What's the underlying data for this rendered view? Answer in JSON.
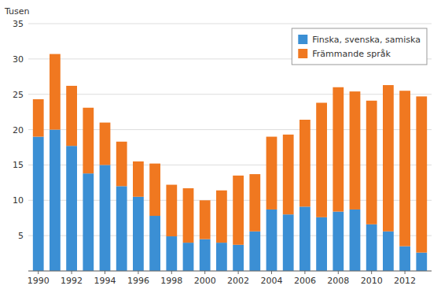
{
  "chart_data": {
    "type": "bar",
    "stacked": true,
    "y_label": "Tusen",
    "x": [
      1990,
      1991,
      1992,
      1993,
      1994,
      1995,
      1996,
      1997,
      1998,
      1999,
      2000,
      2001,
      2002,
      2003,
      2004,
      2005,
      2006,
      2007,
      2008,
      2009,
      2010,
      2011,
      2012,
      2013
    ],
    "series": [
      {
        "name": "Finska, svenska, samiska",
        "color": "#3b8fd4",
        "values": [
          19.0,
          20.0,
          17.7,
          13.8,
          15.0,
          12.0,
          10.5,
          7.8,
          4.9,
          4.0,
          4.5,
          4.0,
          3.7,
          5.6,
          8.7,
          8.0,
          9.1,
          7.6,
          8.4,
          8.7,
          6.6,
          5.6,
          3.5,
          2.6
        ]
      },
      {
        "name": "Främmande språk",
        "color": "#f07820",
        "values": [
          5.3,
          10.7,
          8.5,
          9.3,
          6.0,
          6.3,
          5.0,
          7.4,
          7.3,
          7.7,
          5.5,
          7.4,
          9.8,
          8.1,
          10.3,
          11.3,
          12.3,
          16.2,
          17.6,
          16.7,
          17.5,
          20.7,
          22.0,
          22.1
        ]
      }
    ],
    "xlim": [
      1989.4,
      2013.6
    ],
    "xticks": [
      1990,
      1992,
      1994,
      1996,
      1998,
      2000,
      2002,
      2004,
      2006,
      2008,
      2010,
      2012
    ],
    "ylim": [
      0,
      35
    ],
    "yticks": [
      {
        "value": 0,
        "label": null
      },
      5,
      10,
      15,
      20,
      25,
      30,
      35
    ],
    "grid": true,
    "legend": "upper right"
  }
}
